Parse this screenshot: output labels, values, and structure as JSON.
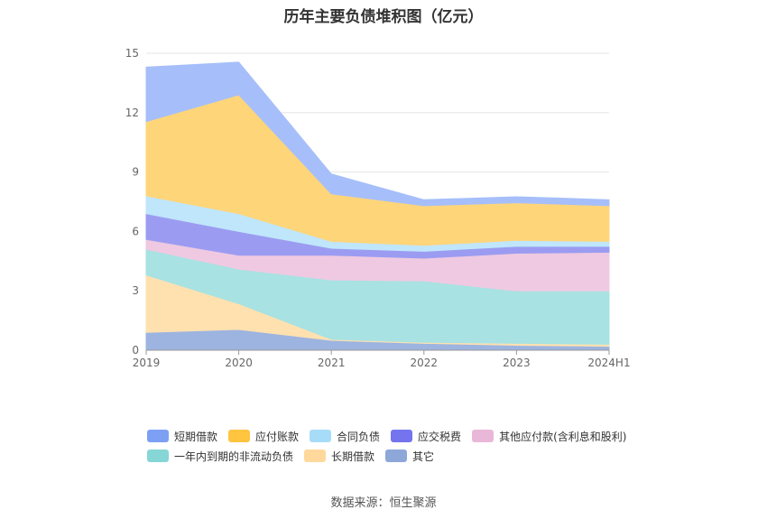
{
  "chart_data": {
    "type": "area",
    "stacked": true,
    "title": "历年主要负债堆积图（亿元）",
    "xlabel": "",
    "ylabel": "",
    "categories": [
      "2019",
      "2020",
      "2021",
      "2022",
      "2023",
      "2024H1"
    ],
    "y_ticks": [
      "0",
      "3",
      "6",
      "9",
      "12",
      "15"
    ],
    "ylim": [
      0,
      15
    ],
    "grid": true,
    "legend_position": "bottom",
    "series": [
      {
        "name": "其它",
        "color": "#9db4e0",
        "values": [
          0.9,
          1.05,
          0.5,
          0.35,
          0.25,
          0.2
        ]
      },
      {
        "name": "长期借款",
        "color": "#ffe1b0",
        "values": [
          2.9,
          1.3,
          0.05,
          0.05,
          0.1,
          0.1
        ]
      },
      {
        "name": "一年内到期的非流动负债",
        "color": "#a8e2e2",
        "values": [
          1.3,
          1.75,
          3.0,
          3.1,
          2.65,
          2.7
        ]
      },
      {
        "name": "其他应付款(含利息和股利)",
        "color": "#efc9e2",
        "values": [
          0.5,
          0.7,
          1.25,
          1.15,
          1.9,
          1.95
        ]
      },
      {
        "name": "应交税费",
        "color": "#9b9cf1",
        "values": [
          1.3,
          1.2,
          0.35,
          0.35,
          0.35,
          0.3
        ]
      },
      {
        "name": "合同负债",
        "color": "#bfe6fb",
        "values": [
          0.9,
          0.9,
          0.35,
          0.3,
          0.3,
          0.25
        ]
      },
      {
        "name": "应付账款",
        "color": "#ffd57a",
        "values": [
          3.75,
          6.0,
          2.4,
          2.0,
          1.9,
          1.8
        ]
      },
      {
        "name": "短期借款",
        "color": "#a6bffa",
        "values": [
          2.75,
          1.65,
          1.0,
          0.3,
          0.3,
          0.3
        ]
      }
    ]
  },
  "legend": {
    "row1": [
      {
        "label": "短期借款",
        "color": "#7da0f5"
      },
      {
        "label": "应付账款",
        "color": "#ffc440"
      },
      {
        "label": "合同负债",
        "color": "#a7dcf9"
      },
      {
        "label": "应交税费",
        "color": "#7474ee"
      },
      {
        "label": "其他应付款(含利息和股利)",
        "color": "#e9b7d8"
      }
    ],
    "row2": [
      {
        "label": "一年内到期的非流动负债",
        "color": "#86d6d6"
      },
      {
        "label": "长期借款",
        "color": "#ffd89b"
      },
      {
        "label": "其它",
        "color": "#8ea7d9"
      }
    ]
  },
  "source": "数据来源：恒生聚源"
}
